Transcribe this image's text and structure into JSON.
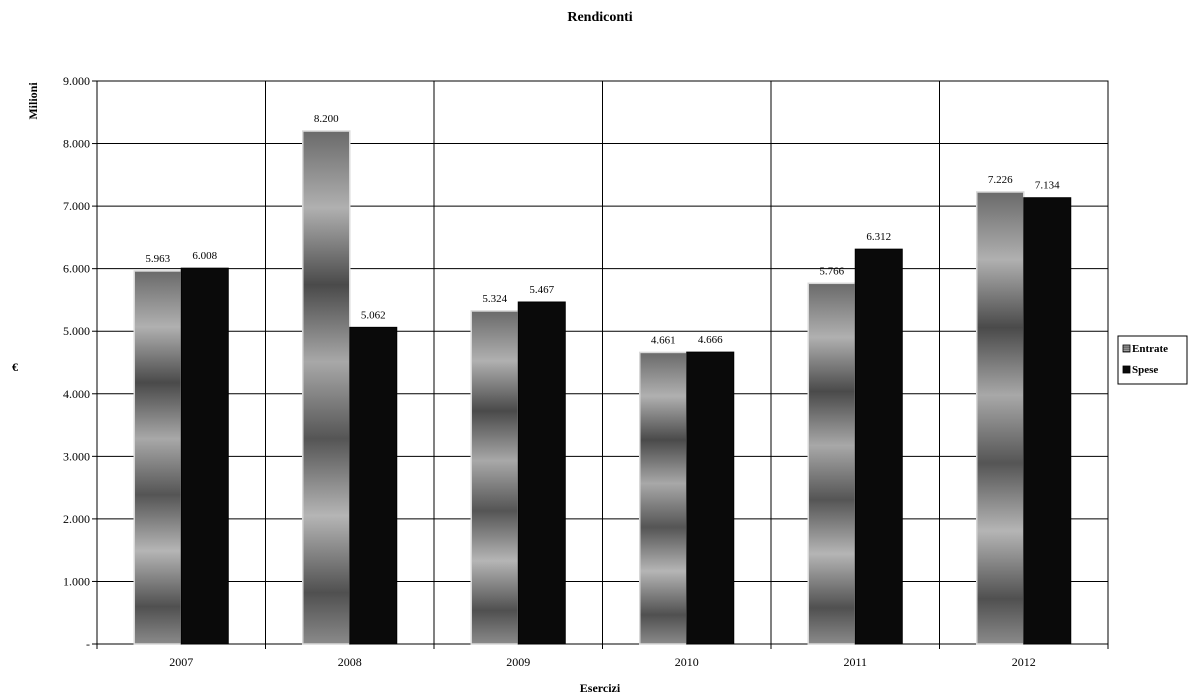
{
  "chart_data": {
    "type": "bar",
    "title": "Rendiconti",
    "xlabel": "Esercizi",
    "ylabel": "€",
    "yunit_label": "Milioni",
    "categories": [
      "2007",
      "2008",
      "2009",
      "2010",
      "2011",
      "2012"
    ],
    "series": [
      {
        "name": "Entrate",
        "values": [
          5963,
          8200,
          5324,
          4661,
          5766,
          7226
        ],
        "labels": [
          "5.963",
          "8.200",
          "5.324",
          "4.661",
          "5.766",
          "7.226"
        ],
        "color": "#9a9a9a"
      },
      {
        "name": "Spese",
        "values": [
          6008,
          5062,
          5467,
          4666,
          6312,
          7134
        ],
        "labels": [
          "6.008",
          "5.062",
          "5.467",
          "4.666",
          "6.312",
          "7.134"
        ],
        "color": "#0a0a0a"
      }
    ],
    "ylim": [
      0,
      9000
    ],
    "yticks": [
      0,
      1000,
      2000,
      3000,
      4000,
      5000,
      6000,
      7000,
      8000,
      9000
    ],
    "ytick_labels": [
      "-",
      "1.000",
      "2.000",
      "3.000",
      "4.000",
      "5.000",
      "6.000",
      "7.000",
      "8.000",
      "9.000"
    ],
    "grid": true,
    "legend_position": "right"
  }
}
